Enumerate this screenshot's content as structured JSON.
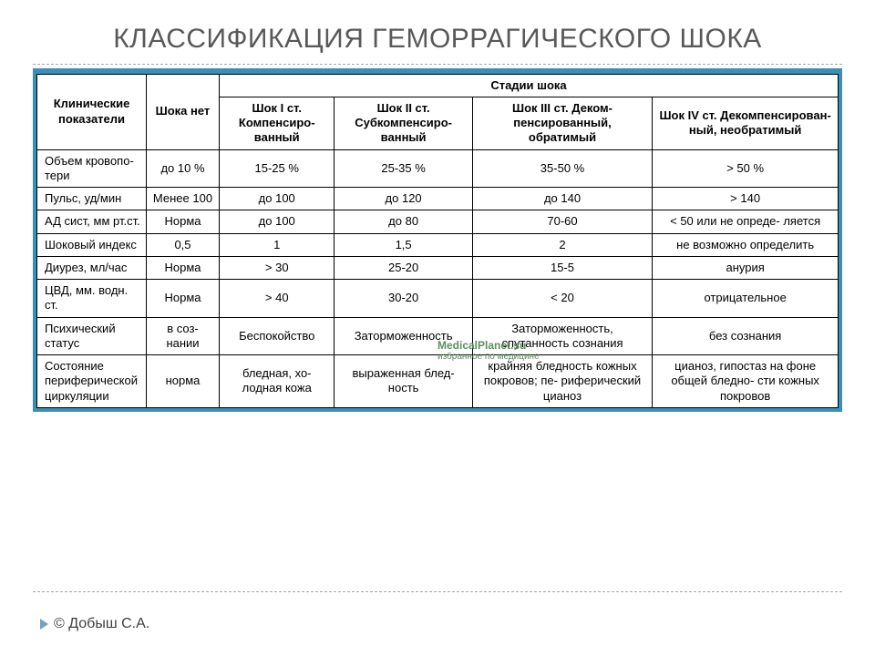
{
  "title": "КЛАССИФИКАЦИЯ ГЕМОРРАГИЧЕСКОГО ШОКА",
  "header": {
    "param": "Клинические показатели",
    "noshock": "Шока нет",
    "stages_label": "Стадии шока",
    "stage1": "Шок I ст. Компенсиро-\nванный",
    "stage2": "Шок II ст. Субкомпенсиро-\nванный",
    "stage3": "Шок III ст. Деком-\nпенсированный, обратимый",
    "stage4": "Шок IV ст. Декомпенсирован-\nный, необратимый"
  },
  "rows": [
    {
      "label": "Объем кровопо-\nтери",
      "c0": "до 10 %",
      "c1": "15-25 %",
      "c2": "25-35 %",
      "c3": "35-50 %",
      "c4": "> 50 %"
    },
    {
      "label": "Пульс, уд/мин",
      "c0": "Менее 100",
      "c1": "до 100",
      "c2": "до 120",
      "c3": "до 140",
      "c4": "> 140"
    },
    {
      "label": "АД сист, мм рт.ст.",
      "c0": "Норма",
      "c1": "до 100",
      "c2": "до 80",
      "c3": "70-60",
      "c4": "< 50 или не опреде-\nляется"
    },
    {
      "label": "Шоковый индекс",
      "c0": "0,5",
      "c1": "1",
      "c2": "1,5",
      "c3": "2",
      "c4": "не возможно определить"
    },
    {
      "label": "Диурез, мл/час",
      "c0": "Норма",
      "c1": "> 30",
      "c2": "25-20",
      "c3": "15-5",
      "c4": "анурия"
    },
    {
      "label": "ЦВД, мм. водн. ст.",
      "c0": "Норма",
      "c1": "> 40",
      "c2": "30-20",
      "c3": "< 20",
      "c4": "отрицательное"
    },
    {
      "label": "Психический статус",
      "c0": "в соз-\nнании",
      "c1": "Беспокойство",
      "c2": "Заторможенность",
      "c3": "Заторможенность, спутанность сознания",
      "c4": "без сознания"
    },
    {
      "label": "Состояние периферической циркуляции",
      "c0": "норма",
      "c1": "бледная, хо-\nлодная кожа",
      "c2": "выраженная блед-\nность",
      "c3": "крайняя бледность кожных покровов; пе-\nриферический цианоз",
      "c4": "цианоз, гипостаз на фоне общей бледно-\nсти кожных покровов"
    }
  ],
  "watermark": {
    "line1": "MedicalPlanet.su",
    "line2": "избранное по медицине"
  },
  "footer": "© Добыш С.А.",
  "colors": {
    "title": "#595959",
    "table_wrap_bg": "#3a8fb7",
    "border": "#000000",
    "dash": "#a6a6a6",
    "bullet": "#7aa0bb"
  }
}
